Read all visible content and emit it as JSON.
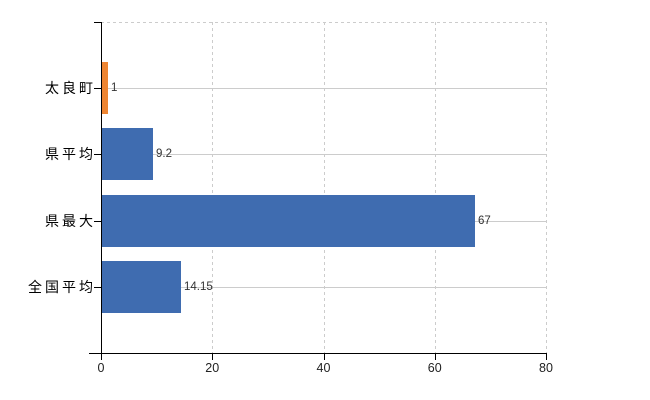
{
  "chart_data": {
    "type": "bar",
    "orientation": "horizontal",
    "title": "",
    "categories": [
      "太良町",
      "県平均",
      "県最大",
      "全国平均"
    ],
    "values": [
      1,
      9.2,
      67,
      14.15
    ],
    "value_labels": [
      "1",
      "9.2",
      "67",
      "14.15"
    ],
    "bar_colors": [
      "#ee8532",
      "#3f6cb0",
      "#3f6cb0",
      "#3f6cb0"
    ],
    "xlim": [
      0,
      80
    ],
    "x_ticks": [
      0,
      20,
      40,
      60,
      80
    ],
    "x_tick_labels": [
      "0",
      "20",
      "40",
      "60",
      "80"
    ],
    "grid": "on",
    "legend": "none",
    "gridline_style": {
      "vertical": "dashed",
      "horizontal": "solid",
      "top_border": "dashed",
      "right_border": "dashed"
    },
    "colors": {
      "bar_blue": "#3f6cb0",
      "bar_orange": "#ee8532",
      "grid_line": "#cccccc",
      "axis_line": "#000000",
      "value_label_text": "#333333",
      "x_tick_label_text": "#222222",
      "category_label_text": "#000000",
      "background": "#ffffff"
    }
  }
}
